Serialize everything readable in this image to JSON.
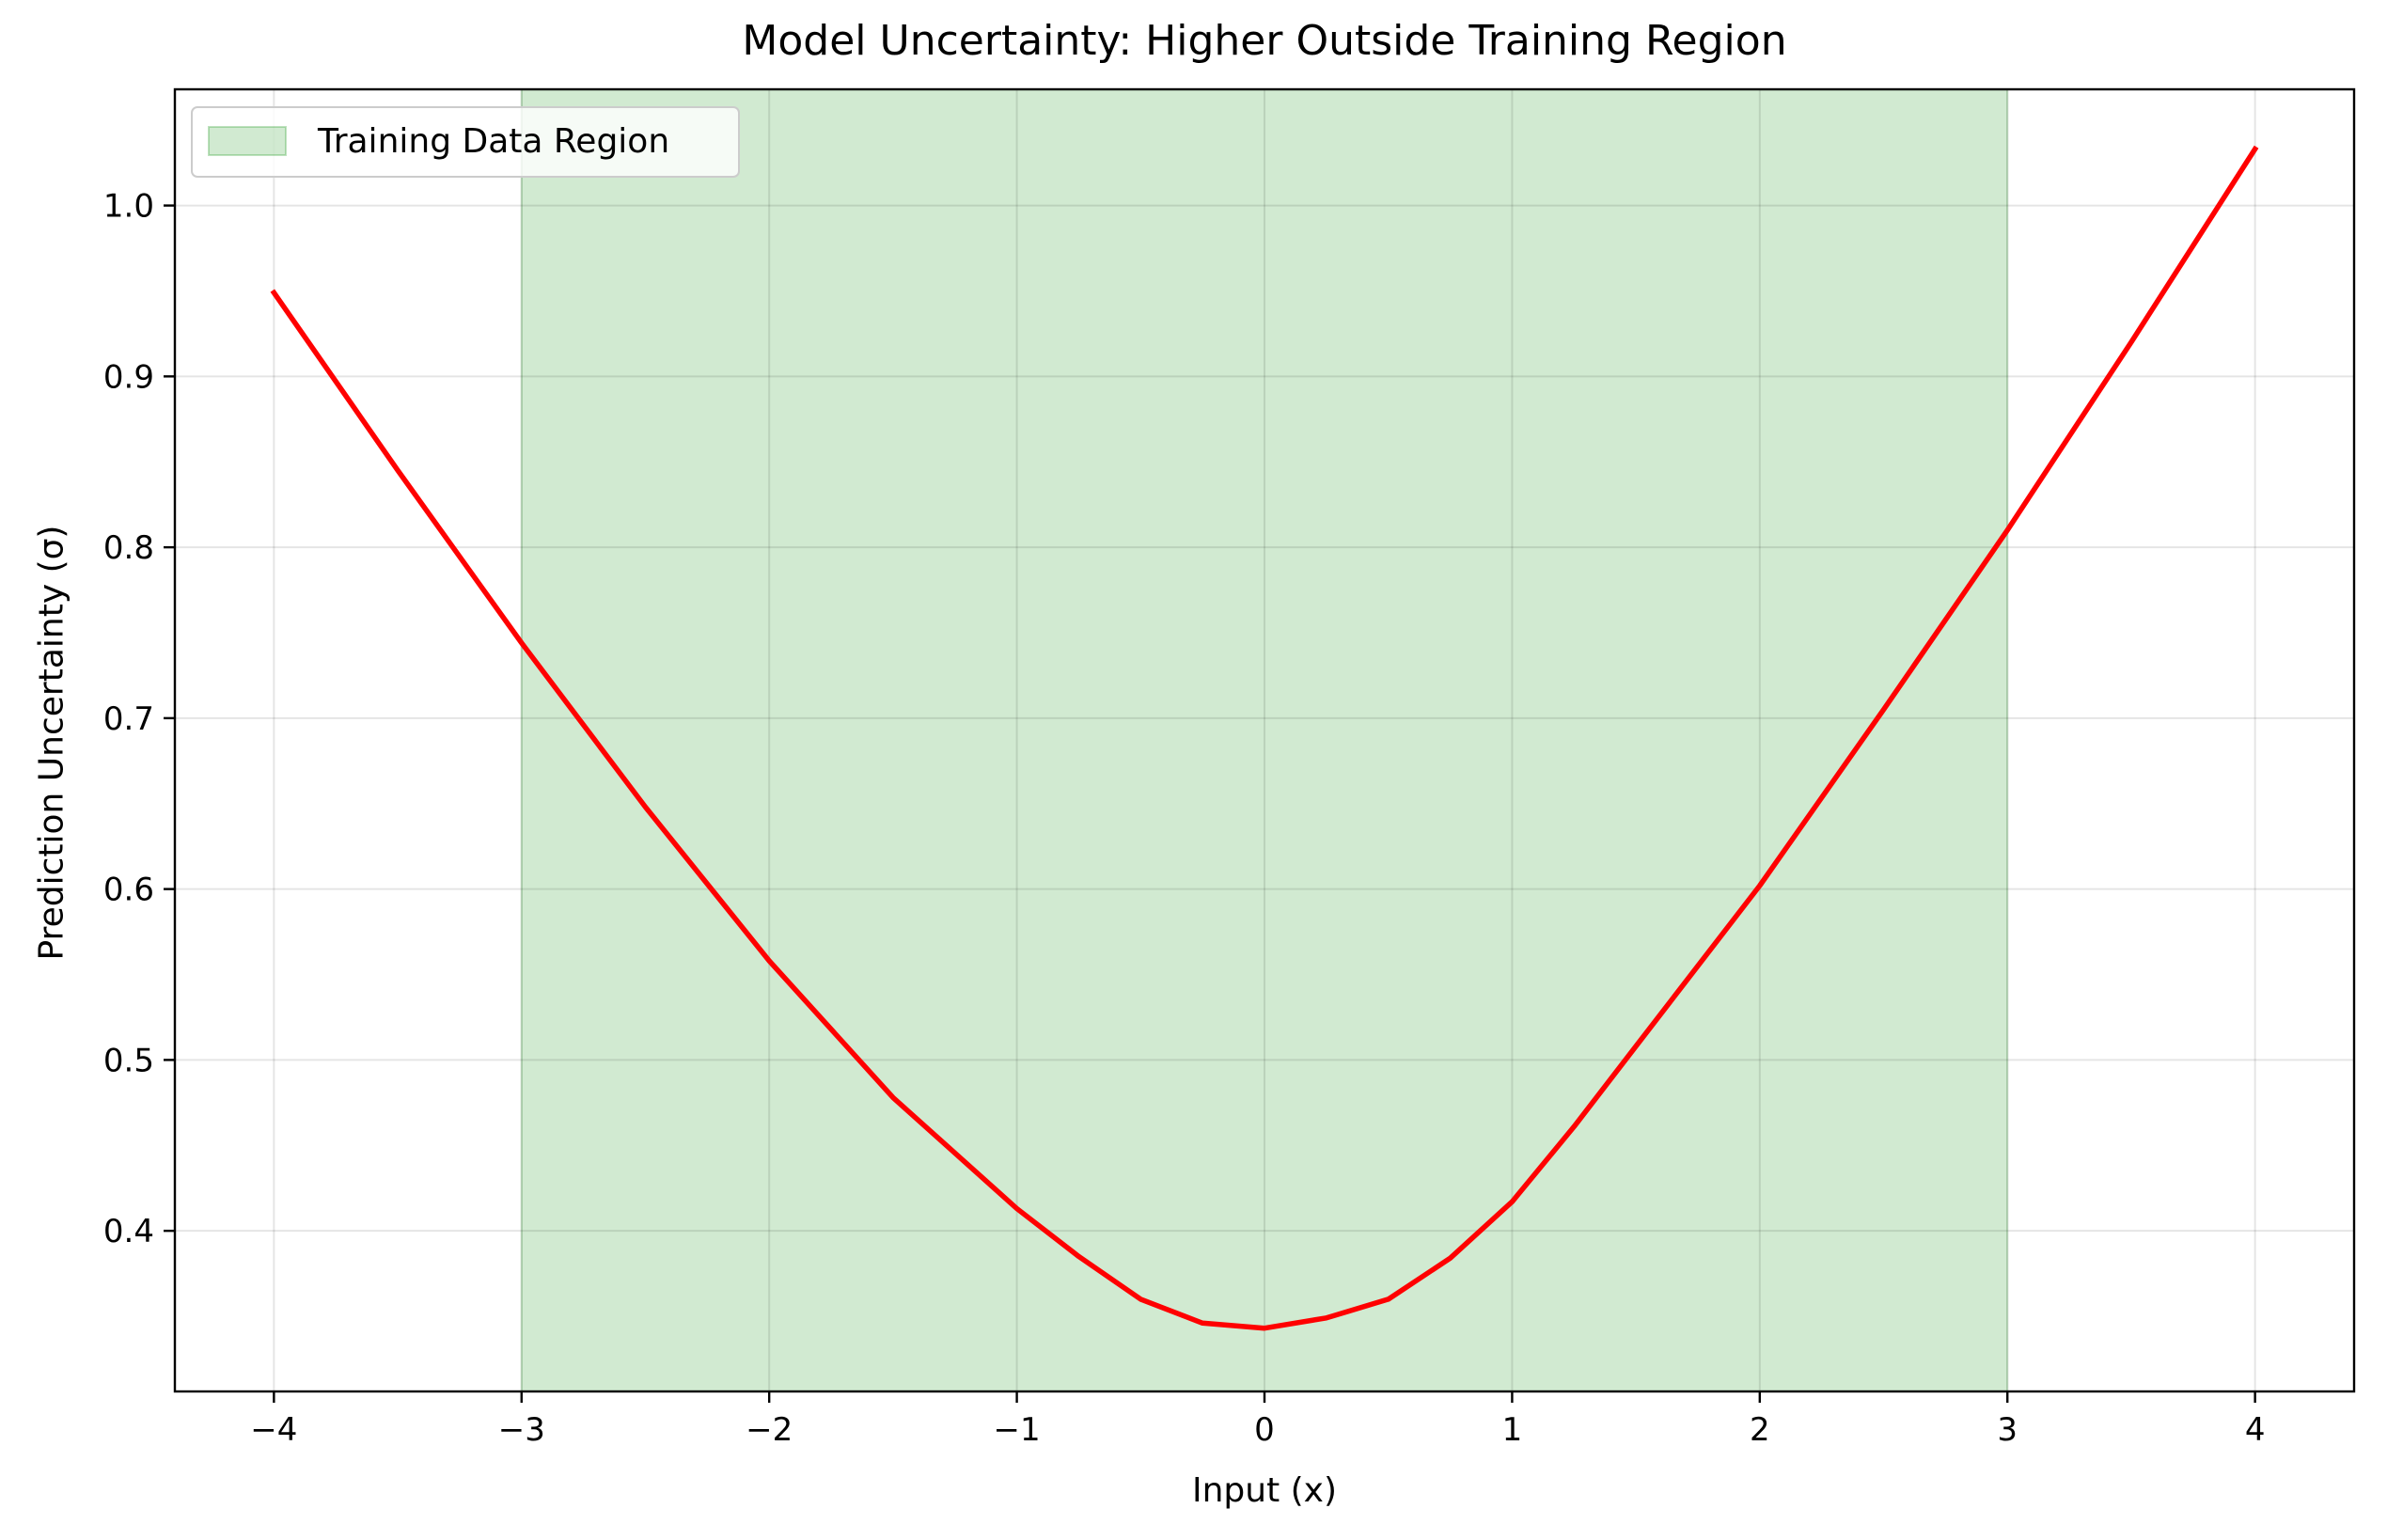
{
  "chart_data": {
    "type": "line",
    "title": "Model Uncertainty: Higher Outside Training Region",
    "xlabel": "Input (x)",
    "ylabel": "Prediction Uncertainty (σ)",
    "xlim": [
      -4.4,
      4.4
    ],
    "ylim": [
      0.306,
      1.068
    ],
    "xticks": [
      -4,
      -3,
      -2,
      -1,
      0,
      1,
      2,
      3,
      4
    ],
    "xtick_labels": [
      "−4",
      "−3",
      "−2",
      "−1",
      "0",
      "1",
      "2",
      "3",
      "4"
    ],
    "yticks": [
      0.4,
      0.5,
      0.6,
      0.7,
      0.8,
      0.9,
      1.0
    ],
    "ytick_labels": [
      "0.4",
      "0.5",
      "0.6",
      "0.7",
      "0.8",
      "0.9",
      "1.0"
    ],
    "grid": true,
    "legend_position": "top-left",
    "shaded_region": {
      "label": "Training Data Region",
      "x_start": -3,
      "x_end": 3,
      "color": "#2ca02c"
    },
    "series": [
      {
        "color": "#ff0000",
        "x": [
          -4.0,
          -3.5,
          -3.0,
          -2.5,
          -2.0,
          -1.5,
          -1.0,
          -0.75,
          -0.5,
          -0.25,
          0.0,
          0.25,
          0.5,
          0.75,
          1.0,
          1.25,
          1.5,
          2.0,
          2.5,
          3.0,
          3.5,
          4.0
        ],
        "y": [
          0.949,
          0.845,
          0.744,
          0.648,
          0.558,
          0.478,
          0.413,
          0.385,
          0.36,
          0.346,
          0.343,
          0.349,
          0.36,
          0.384,
          0.417,
          0.461,
          0.508,
          0.602,
          0.705,
          0.81,
          0.92,
          1.033
        ]
      }
    ]
  }
}
